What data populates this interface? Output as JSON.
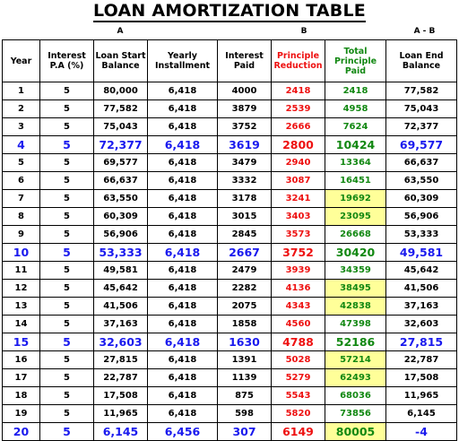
{
  "title": "LOAN AMORTIZATION TABLE",
  "markers": {
    "a": "A",
    "b": "B",
    "ab": "A - B"
  },
  "headers": [
    "Year",
    "Interest P.A (%)",
    "Loan Start Balance",
    "Yearly Installment",
    "Interest Paid",
    "Principle Reduction",
    "Total Principle Paid",
    "Loan End Balance"
  ],
  "rows": [
    {
      "cells": [
        "1",
        "5",
        "80,000",
        "6,418",
        "4000",
        "2418",
        "2418",
        "77,582"
      ],
      "emphasis": false,
      "total_highlight": false
    },
    {
      "cells": [
        "2",
        "5",
        "77,582",
        "6,418",
        "3879",
        "2539",
        "4958",
        "75,043"
      ],
      "emphasis": false,
      "total_highlight": false
    },
    {
      "cells": [
        "3",
        "5",
        "75,043",
        "6,418",
        "3752",
        "2666",
        "7624",
        "72,377"
      ],
      "emphasis": false,
      "total_highlight": false
    },
    {
      "cells": [
        "4",
        "5",
        "72,377",
        "6,418",
        "3619",
        "2800",
        "10424",
        "69,577"
      ],
      "emphasis": true,
      "total_highlight": false
    },
    {
      "cells": [
        "5",
        "5",
        "69,577",
        "6,418",
        "3479",
        "2940",
        "13364",
        "66,637"
      ],
      "emphasis": false,
      "total_highlight": false
    },
    {
      "cells": [
        "6",
        "5",
        "66,637",
        "6,418",
        "3332",
        "3087",
        "16451",
        "63,550"
      ],
      "emphasis": false,
      "total_highlight": false
    },
    {
      "cells": [
        "7",
        "5",
        "63,550",
        "6,418",
        "3178",
        "3241",
        "19692",
        "60,309"
      ],
      "emphasis": false,
      "total_highlight": true
    },
    {
      "cells": [
        "8",
        "5",
        "60,309",
        "6,418",
        "3015",
        "3403",
        "23095",
        "56,906"
      ],
      "emphasis": false,
      "total_highlight": true
    },
    {
      "cells": [
        "9",
        "5",
        "56,906",
        "6,418",
        "2845",
        "3573",
        "26668",
        "53,333"
      ],
      "emphasis": false,
      "total_highlight": false
    },
    {
      "cells": [
        "10",
        "5",
        "53,333",
        "6,418",
        "2667",
        "3752",
        "30420",
        "49,581"
      ],
      "emphasis": true,
      "total_highlight": false
    },
    {
      "cells": [
        "11",
        "5",
        "49,581",
        "6,418",
        "2479",
        "3939",
        "34359",
        "45,642"
      ],
      "emphasis": false,
      "total_highlight": false
    },
    {
      "cells": [
        "12",
        "5",
        "45,642",
        "6,418",
        "2282",
        "4136",
        "38495",
        "41,506"
      ],
      "emphasis": false,
      "total_highlight": true
    },
    {
      "cells": [
        "13",
        "5",
        "41,506",
        "6,418",
        "2075",
        "4343",
        "42838",
        "37,163"
      ],
      "emphasis": false,
      "total_highlight": true
    },
    {
      "cells": [
        "14",
        "5",
        "37,163",
        "6,418",
        "1858",
        "4560",
        "47398",
        "32,603"
      ],
      "emphasis": false,
      "total_highlight": false
    },
    {
      "cells": [
        "15",
        "5",
        "32,603",
        "6,418",
        "1630",
        "4788",
        "52186",
        "27,815"
      ],
      "emphasis": true,
      "total_highlight": false
    },
    {
      "cells": [
        "16",
        "5",
        "27,815",
        "6,418",
        "1391",
        "5028",
        "57214",
        "22,787"
      ],
      "emphasis": false,
      "total_highlight": true
    },
    {
      "cells": [
        "17",
        "5",
        "22,787",
        "6,418",
        "1139",
        "5279",
        "62493",
        "17,508"
      ],
      "emphasis": false,
      "total_highlight": true
    },
    {
      "cells": [
        "18",
        "5",
        "17,508",
        "6,418",
        "875",
        "5543",
        "68036",
        "11,965"
      ],
      "emphasis": false,
      "total_highlight": false
    },
    {
      "cells": [
        "19",
        "5",
        "11,965",
        "6,418",
        "598",
        "5820",
        "73856",
        "6,145"
      ],
      "emphasis": false,
      "total_highlight": false
    },
    {
      "cells": [
        "20",
        "5",
        "6,145",
        "6,456",
        "307",
        "6149",
        "80005",
        "-4"
      ],
      "emphasis": true,
      "total_highlight": true
    }
  ],
  "colors": {
    "red": "#ee1111",
    "green": "#128812",
    "blue": "#1a1aee",
    "highlight": "#ffff99"
  }
}
